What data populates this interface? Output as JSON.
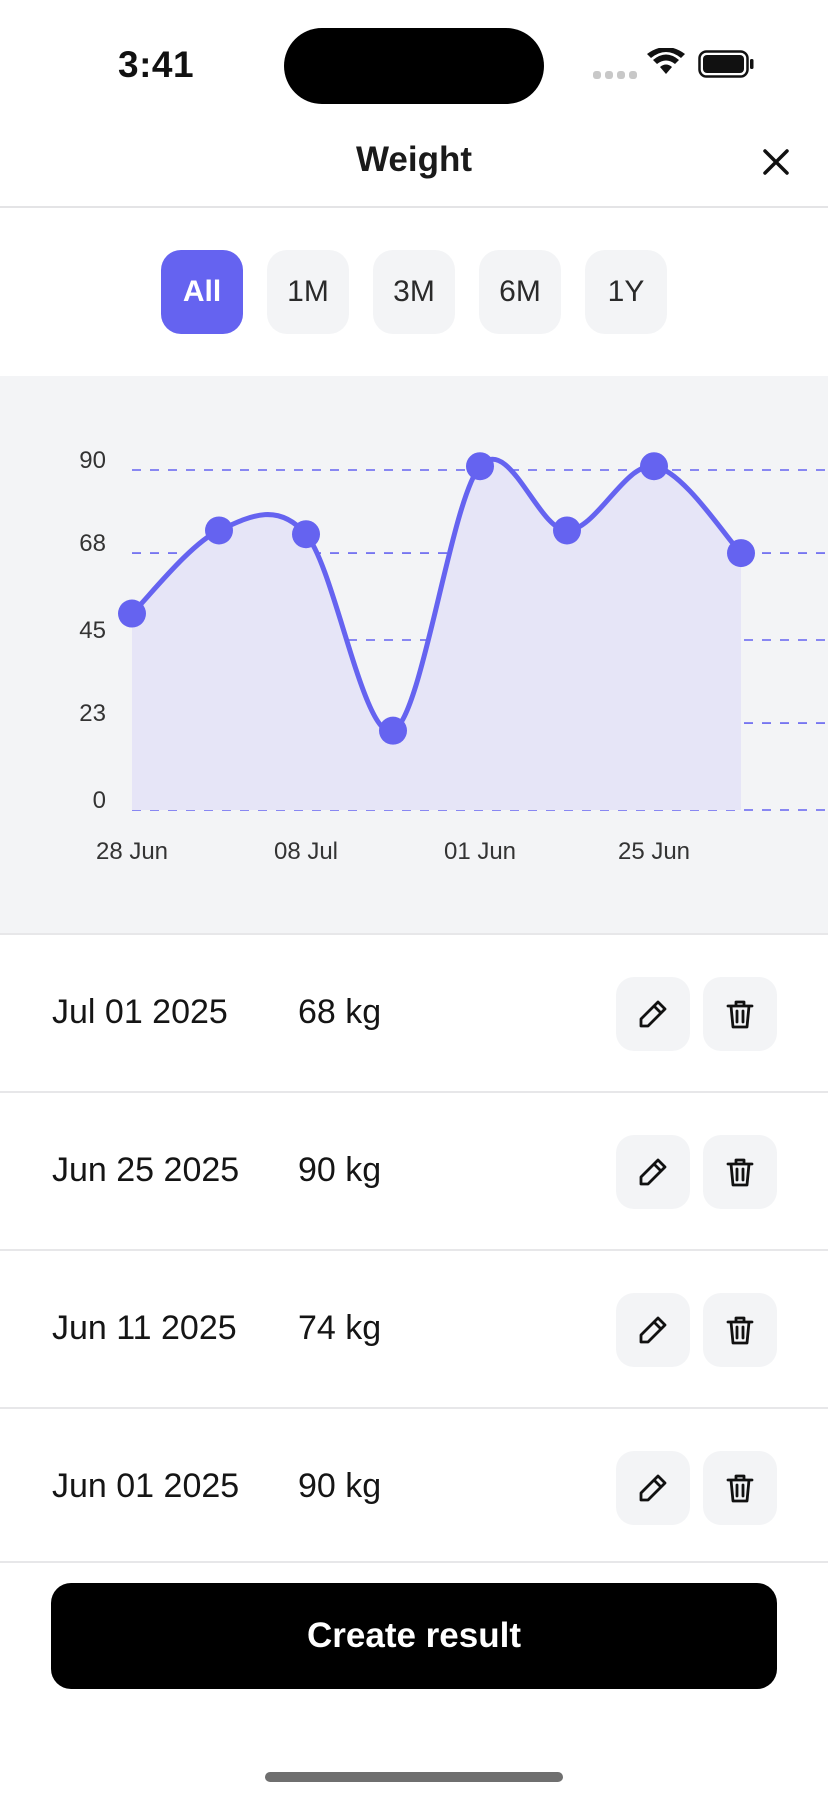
{
  "status_bar": {
    "time": "3:41"
  },
  "header": {
    "title": "Weight"
  },
  "tabs": [
    {
      "label": "All",
      "active": true
    },
    {
      "label": "1M",
      "active": false
    },
    {
      "label": "3M",
      "active": false
    },
    {
      "label": "6M",
      "active": false
    },
    {
      "label": "1Y",
      "active": false
    }
  ],
  "chart_data": {
    "type": "area",
    "x_tick_labels": [
      "28 Jun",
      "08 Jul",
      "01 Jun",
      "25 Jun"
    ],
    "values": [
      52,
      74,
      73,
      21,
      91,
      74,
      91,
      68
    ],
    "y_ticks": [
      0,
      23,
      45,
      68,
      90
    ],
    "ylim": [
      0,
      90
    ],
    "grid": "horizontal dashed",
    "line_color": "#6563f0",
    "fill_color": "#e6e5f7"
  },
  "results": [
    {
      "date": "Jul 01 2025",
      "value": "68 kg"
    },
    {
      "date": "Jun 25 2025",
      "value": "90 kg"
    },
    {
      "date": "Jun 11 2025",
      "value": "74 kg"
    },
    {
      "date": "Jun 01 2025",
      "value": "90 kg"
    }
  ],
  "actions": {
    "edit_icon": "pencil-icon",
    "delete_icon": "trash-icon"
  },
  "cta": {
    "label": "Create result"
  },
  "colors": {
    "accent": "#6563f0",
    "surface": "#f3f4f6",
    "cta": "#000000"
  }
}
